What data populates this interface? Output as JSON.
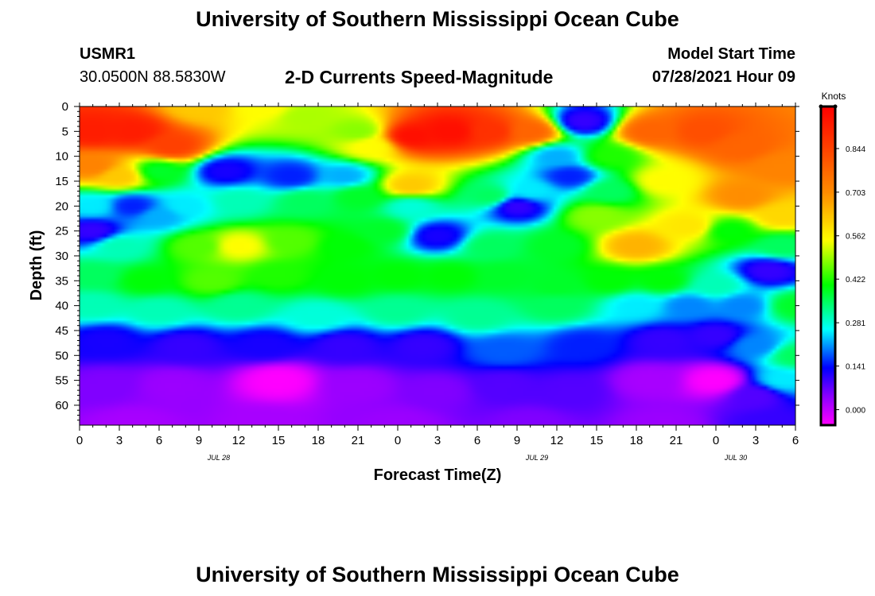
{
  "header": {
    "title": "University of Southern Mississippi Ocean Cube",
    "station_id": "USMR1",
    "station_coords": "30.0500N  88.5830W",
    "subtitle": "2-D Currents Speed-Magnitude",
    "start_label": "Model Start Time",
    "start_value": "07/28/2021 Hour 09"
  },
  "footer": {
    "title": "University of Southern Mississippi Ocean Cube"
  },
  "chart_data": {
    "type": "heatmap",
    "title": "2-D Currents Speed-Magnitude",
    "xlabel": "Forecast Time(Z)",
    "ylabel": "Depth (ft)",
    "x_ticks": [
      "0",
      "3",
      "6",
      "9",
      "12",
      "15",
      "18",
      "21",
      "0",
      "3",
      "6",
      "9",
      "12",
      "15",
      "18",
      "21",
      "0",
      "3",
      "6"
    ],
    "date_labels": [
      {
        "label": "JUL 28",
        "tick_index": 3.5
      },
      {
        "label": "JUL 29",
        "tick_index": 11.5
      },
      {
        "label": "JUL 30",
        "tick_index": 16.5
      }
    ],
    "x_range_hours": [
      0,
      54
    ],
    "y_ticks": [
      "0",
      "5",
      "10",
      "15",
      "20",
      "25",
      "30",
      "35",
      "40",
      "45",
      "50",
      "55",
      "60"
    ],
    "ylim": [
      64,
      0
    ],
    "y_reversed": true,
    "colorbar": {
      "label": "Knots",
      "ticks": [
        "0.000",
        "0.141",
        "0.281",
        "0.422",
        "0.562",
        "0.703",
        "0.844"
      ],
      "range": [
        -0.05,
        0.98
      ]
    },
    "grid": false,
    "features": [
      {
        "t": 1,
        "d": 5,
        "v": 0.92
      },
      {
        "t": 4,
        "d": 5,
        "v": 0.92
      },
      {
        "t": 7,
        "d": 8,
        "v": 0.85
      },
      {
        "t": 9,
        "d": 0,
        "v": 0.62
      },
      {
        "t": 14,
        "d": 0,
        "v": 0.55
      },
      {
        "t": 17,
        "d": 2,
        "v": 0.5
      },
      {
        "t": 21,
        "d": 5,
        "v": 0.48
      },
      {
        "t": 22,
        "d": 8,
        "v": 0.55
      },
      {
        "t": 25,
        "d": 6,
        "v": 0.95
      },
      {
        "t": 28,
        "d": 5,
        "v": 0.95
      },
      {
        "t": 31,
        "d": 5,
        "v": 0.88
      },
      {
        "t": 34,
        "d": 5,
        "v": 0.78
      },
      {
        "t": 36,
        "d": 10,
        "v": 0.22
      },
      {
        "t": 38,
        "d": 3,
        "v": 0.1
      },
      {
        "t": 40,
        "d": 10,
        "v": 0.42
      },
      {
        "t": 43,
        "d": 5,
        "v": 0.78
      },
      {
        "t": 47,
        "d": 5,
        "v": 0.82
      },
      {
        "t": 50,
        "d": 8,
        "v": 0.78
      },
      {
        "t": 53,
        "d": 12,
        "v": 0.72
      },
      {
        "t": 1,
        "d": 12,
        "v": 0.72
      },
      {
        "t": 3,
        "d": 14,
        "v": 0.62
      },
      {
        "t": 6,
        "d": 13,
        "v": 0.38
      },
      {
        "t": 11,
        "d": 13,
        "v": 0.12
      },
      {
        "t": 16,
        "d": 14,
        "v": 0.15
      },
      {
        "t": 20,
        "d": 14,
        "v": 0.22
      },
      {
        "t": 25,
        "d": 16,
        "v": 0.62
      },
      {
        "t": 31,
        "d": 18,
        "v": 0.35
      },
      {
        "t": 34,
        "d": 17,
        "v": 0.25
      },
      {
        "t": 37,
        "d": 14,
        "v": 0.15
      },
      {
        "t": 40,
        "d": 17,
        "v": 0.35
      },
      {
        "t": 44,
        "d": 15,
        "v": 0.55
      },
      {
        "t": 50,
        "d": 18,
        "v": 0.7
      },
      {
        "t": 53,
        "d": 22,
        "v": 0.6
      },
      {
        "t": 1,
        "d": 20,
        "v": 0.25
      },
      {
        "t": 4,
        "d": 20,
        "v": 0.15
      },
      {
        "t": 6,
        "d": 22,
        "v": 0.22
      },
      {
        "t": 8,
        "d": 20,
        "v": 0.25
      },
      {
        "t": 12,
        "d": 19,
        "v": 0.3
      },
      {
        "t": 17,
        "d": 19,
        "v": 0.35
      },
      {
        "t": 21,
        "d": 18,
        "v": 0.38
      },
      {
        "t": 25,
        "d": 20,
        "v": 0.28
      },
      {
        "t": 27,
        "d": 26,
        "v": 0.12
      },
      {
        "t": 33,
        "d": 20,
        "v": 0.1
      },
      {
        "t": 39,
        "d": 22,
        "v": 0.48
      },
      {
        "t": 42,
        "d": 28,
        "v": 0.65
      },
      {
        "t": 46,
        "d": 24,
        "v": 0.58
      },
      {
        "t": 49,
        "d": 25,
        "v": 0.4
      },
      {
        "t": 53,
        "d": 28,
        "v": 0.35
      },
      {
        "t": 1,
        "d": 25,
        "v": 0.1
      },
      {
        "t": 3,
        "d": 28,
        "v": 0.3
      },
      {
        "t": 9,
        "d": 28,
        "v": 0.45
      },
      {
        "t": 12,
        "d": 28,
        "v": 0.55
      },
      {
        "t": 16,
        "d": 27,
        "v": 0.45
      },
      {
        "t": 20,
        "d": 28,
        "v": 0.4
      },
      {
        "t": 23,
        "d": 25,
        "v": 0.38
      },
      {
        "t": 31,
        "d": 28,
        "v": 0.35
      },
      {
        "t": 36,
        "d": 28,
        "v": 0.38
      },
      {
        "t": 52,
        "d": 33,
        "v": 0.1
      },
      {
        "t": 1,
        "d": 34,
        "v": 0.35
      },
      {
        "t": 5,
        "d": 35,
        "v": 0.4
      },
      {
        "t": 10,
        "d": 35,
        "v": 0.45
      },
      {
        "t": 15,
        "d": 34,
        "v": 0.42
      },
      {
        "t": 20,
        "d": 35,
        "v": 0.4
      },
      {
        "t": 24,
        "d": 34,
        "v": 0.4
      },
      {
        "t": 28,
        "d": 34,
        "v": 0.4
      },
      {
        "t": 32,
        "d": 34,
        "v": 0.38
      },
      {
        "t": 36,
        "d": 36,
        "v": 0.38
      },
      {
        "t": 40,
        "d": 35,
        "v": 0.4
      },
      {
        "t": 44,
        "d": 35,
        "v": 0.4
      },
      {
        "t": 48,
        "d": 36,
        "v": 0.3
      },
      {
        "t": 54,
        "d": 40,
        "v": 0.38
      },
      {
        "t": 1,
        "d": 40,
        "v": 0.3
      },
      {
        "t": 6,
        "d": 41,
        "v": 0.3
      },
      {
        "t": 12,
        "d": 40,
        "v": 0.32
      },
      {
        "t": 18,
        "d": 42,
        "v": 0.28
      },
      {
        "t": 24,
        "d": 41,
        "v": 0.32
      },
      {
        "t": 30,
        "d": 42,
        "v": 0.32
      },
      {
        "t": 36,
        "d": 40,
        "v": 0.35
      },
      {
        "t": 42,
        "d": 40,
        "v": 0.25
      },
      {
        "t": 46,
        "d": 40,
        "v": 0.2
      },
      {
        "t": 50,
        "d": 40,
        "v": 0.2
      },
      {
        "t": 2,
        "d": 47,
        "v": 0.12
      },
      {
        "t": 8,
        "d": 48,
        "v": 0.1
      },
      {
        "t": 14,
        "d": 48,
        "v": 0.12
      },
      {
        "t": 20,
        "d": 48,
        "v": 0.1
      },
      {
        "t": 26,
        "d": 48,
        "v": 0.1
      },
      {
        "t": 32,
        "d": 49,
        "v": 0.18
      },
      {
        "t": 38,
        "d": 48,
        "v": 0.15
      },
      {
        "t": 44,
        "d": 47,
        "v": 0.1
      },
      {
        "t": 48,
        "d": 46,
        "v": 0.1
      },
      {
        "t": 51,
        "d": 48,
        "v": 0.2
      },
      {
        "t": 54,
        "d": 50,
        "v": 0.35
      },
      {
        "t": 53,
        "d": 55,
        "v": 0.25
      },
      {
        "t": 2,
        "d": 56,
        "v": 0.05
      },
      {
        "t": 7,
        "d": 56,
        "v": 0.03
      },
      {
        "t": 15,
        "d": 55,
        "v": -0.05
      },
      {
        "t": 21,
        "d": 56,
        "v": 0.03
      },
      {
        "t": 27,
        "d": 57,
        "v": 0.05
      },
      {
        "t": 32,
        "d": 56,
        "v": 0.08
      },
      {
        "t": 37,
        "d": 57,
        "v": 0.08
      },
      {
        "t": 43,
        "d": 55,
        "v": 0.02
      },
      {
        "t": 48,
        "d": 55,
        "v": -0.05
      },
      {
        "t": 51,
        "d": 58,
        "v": 0.08
      },
      {
        "t": 4,
        "d": 64,
        "v": 0.02
      },
      {
        "t": 14,
        "d": 64,
        "v": 0.02
      },
      {
        "t": 24,
        "d": 64,
        "v": 0.03
      },
      {
        "t": 34,
        "d": 64,
        "v": 0.05
      },
      {
        "t": 44,
        "d": 64,
        "v": 0.03
      },
      {
        "t": 52,
        "d": 64,
        "v": 0.1
      }
    ]
  }
}
